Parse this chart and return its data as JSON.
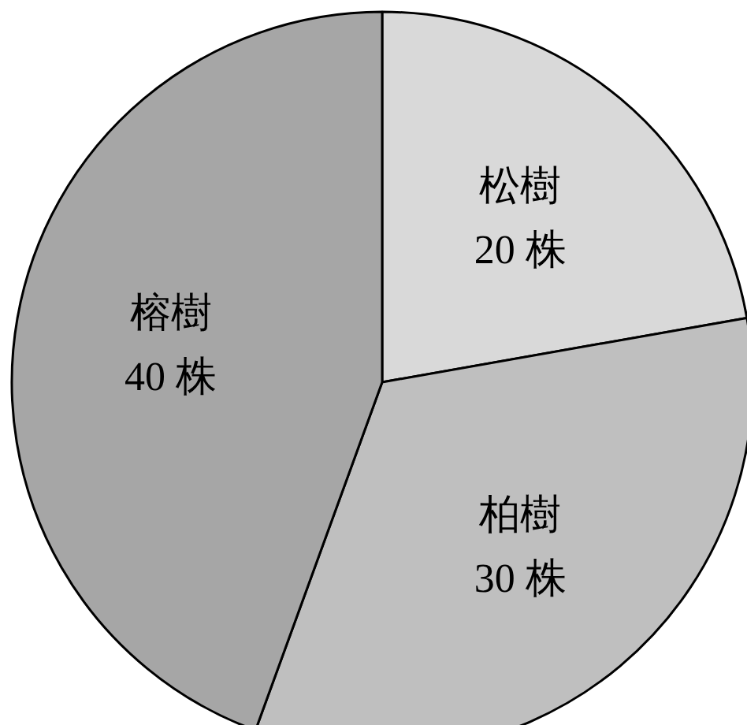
{
  "chart_data": {
    "type": "pie",
    "categories": [
      "松樹",
      "柏樹",
      "榕樹"
    ],
    "values": [
      20,
      30,
      40
    ],
    "value_labels": [
      "20 株",
      "30 株",
      "40 株"
    ],
    "colors": [
      "#d9d9d9",
      "#bfbfbf",
      "#a6a6a6"
    ]
  }
}
